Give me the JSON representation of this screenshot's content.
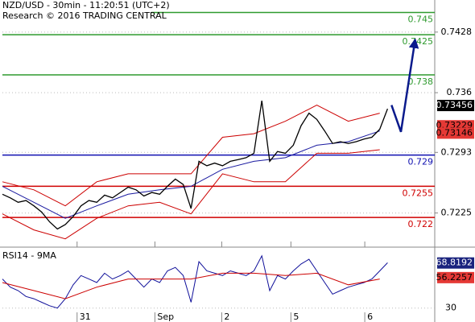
{
  "chart_data": {
    "type": "line",
    "title": "NZD/USD - 30min - 11:20:51 (UTC+2)",
    "subtitle": "Research © 2016 TRADING CENTRAL",
    "color": "#000000",
    "x": [
      0,
      1,
      2,
      3,
      4,
      5,
      6,
      7,
      8,
      9,
      10,
      11,
      12,
      13,
      14,
      15,
      16,
      17,
      18,
      19,
      20,
      21,
      22,
      23,
      24,
      25,
      26,
      27,
      28,
      29,
      30,
      31,
      32,
      33,
      34,
      35,
      36,
      37,
      38,
      39,
      40,
      41,
      42,
      43,
      44,
      45,
      46,
      47,
      48,
      49
    ],
    "values": [
      0.7246,
      0.7242,
      0.7237,
      0.7239,
      0.7233,
      0.7226,
      0.7215,
      0.7207,
      0.7212,
      0.7221,
      0.7233,
      0.7239,
      0.7237,
      0.7245,
      0.7242,
      0.7248,
      0.7254,
      0.7251,
      0.7244,
      0.7248,
      0.7246,
      0.7255,
      0.7263,
      0.7257,
      0.723,
      0.7283,
      0.7278,
      0.7281,
      0.7278,
      0.7283,
      0.7285,
      0.7287,
      0.7292,
      0.7351,
      0.7283,
      0.7294,
      0.7292,
      0.7301,
      0.7323,
      0.7337,
      0.733,
      0.7317,
      0.7303,
      0.7305,
      0.7303,
      0.7305,
      0.7308,
      0.731,
      0.7319,
      0.7342
    ],
    "bands": {
      "x": [
        0,
        4,
        8,
        12,
        16,
        20,
        24,
        28,
        32,
        36,
        40,
        44,
        48
      ],
      "band_color": "#cc0000",
      "ma_color": "#1a1aa0",
      "upper": [
        0.726,
        0.7251,
        0.7233,
        0.726,
        0.7269,
        0.7269,
        0.7269,
        0.731,
        0.7314,
        0.7328,
        0.7346,
        0.7328,
        0.7337
      ],
      "lower": [
        0.7224,
        0.7206,
        0.7196,
        0.7219,
        0.7233,
        0.7237,
        0.7224,
        0.7269,
        0.726,
        0.726,
        0.7292,
        0.7292,
        0.7296
      ],
      "ma": [
        0.7255,
        0.7237,
        0.7219,
        0.7233,
        0.7246,
        0.7251,
        0.7255,
        0.7274,
        0.7283,
        0.7287,
        0.7301,
        0.7305,
        0.7317
      ]
    },
    "projection": {
      "x": [
        49.5,
        50.7,
        52.5
      ],
      "values": [
        0.7346,
        0.7316,
        0.7419
      ],
      "color": "#0a1a8c"
    },
    "levels": [
      {
        "value": 0.745,
        "color": "#2e9a2e"
      },
      {
        "value": 0.7425,
        "color": "#2e9a2e"
      },
      {
        "value": 0.738,
        "color": "#2e9a2e"
      },
      {
        "value": 0.729,
        "color": "#1010b0"
      },
      {
        "value": 0.7255,
        "color": "#d00000"
      },
      {
        "value": 0.722,
        "color": "#d00000"
      }
    ],
    "price_labels": [
      {
        "value": 0.73456,
        "color": "#000000",
        "text_color": "#ffffff"
      },
      {
        "value": 0.73229,
        "color": "#e53935",
        "text_color": "#000000"
      },
      {
        "value": 0.73146,
        "color": "#e53935",
        "text_color": "#000000"
      }
    ],
    "xlim": [
      0,
      55
    ],
    "xticks": [
      {
        "value": 9.5,
        "label": "31"
      },
      {
        "value": 19.4,
        "label": "Sep"
      },
      {
        "value": 27.9,
        "label": "2"
      },
      {
        "value": 36.7,
        "label": "5"
      },
      {
        "value": 46.1,
        "label": "6"
      }
    ],
    "ylim": [
      0.7193,
      0.7464
    ],
    "yticks": [
      0.7225,
      0.7293,
      0.736,
      0.7428
    ],
    "grid": true,
    "rsi": {
      "label": "RSI14 - 9MA",
      "color": "#10109a",
      "ma_color": "#cc0000",
      "values": [
        55,
        48,
        45,
        40,
        38,
        35,
        32,
        30,
        38,
        50,
        58,
        55,
        52,
        60,
        55,
        58,
        62,
        55,
        48,
        55,
        52,
        62,
        65,
        58,
        35,
        70,
        62,
        60,
        58,
        62,
        60,
        58,
        62,
        75,
        45,
        58,
        55,
        62,
        68,
        72,
        62,
        52,
        42,
        45,
        48,
        50,
        52,
        55,
        62,
        69
      ],
      "ma": [
        52,
        45,
        38,
        48,
        55,
        55,
        55,
        60,
        60,
        58,
        60,
        50,
        55
      ],
      "ylim": [
        18,
        79
      ],
      "yticks": [
        30
      ],
      "current": [
        {
          "value": 68.8192,
          "color": "#1a237e",
          "text_color": "#ffffff"
        },
        {
          "value": 56.2257,
          "color": "#e53935",
          "text_color": "#000000"
        }
      ]
    }
  }
}
